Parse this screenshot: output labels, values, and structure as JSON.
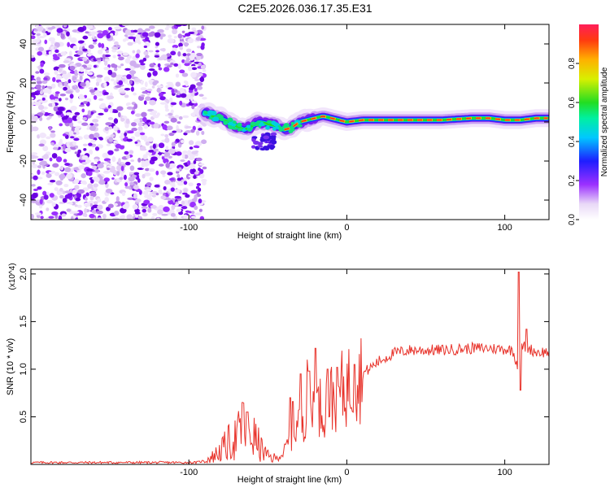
{
  "title": "C2E5.2026.036.17.35.E31",
  "chart_data": [
    {
      "type": "heatmap",
      "name": "spectrogram",
      "xlabel": "Height of straight line (km)",
      "ylabel": "Frequency (Hz)",
      "xlim": [
        -200,
        128
      ],
      "ylim": [
        -50,
        50
      ],
      "xticks": [
        -100,
        0,
        100
      ],
      "yticks": [
        -40,
        -20,
        0,
        20,
        40
      ],
      "colorbar": {
        "label": "Normalized spectral amplitude",
        "range": [
          0,
          1
        ],
        "ticks": [
          0.0,
          0.2,
          0.4,
          0.6,
          0.8
        ],
        "tick_labels": [
          "0.0",
          "0.2",
          "0.4",
          "0.6",
          "0.8"
        ]
      },
      "noise_region_x": [
        -200,
        -90
      ],
      "signal_track": [
        {
          "x": -90,
          "y": 5
        },
        {
          "x": -85,
          "y": 3
        },
        {
          "x": -80,
          "y": 2
        },
        {
          "x": -75,
          "y": 0
        },
        {
          "x": -70,
          "y": -2
        },
        {
          "x": -65,
          "y": -4
        },
        {
          "x": -60,
          "y": -2
        },
        {
          "x": -55,
          "y": 0
        },
        {
          "x": -50,
          "y": -1
        },
        {
          "x": -45,
          "y": -2
        },
        {
          "x": -40,
          "y": -4
        },
        {
          "x": -35,
          "y": -3
        },
        {
          "x": -30,
          "y": 0
        },
        {
          "x": -25,
          "y": 1
        },
        {
          "x": -20,
          "y": 2
        },
        {
          "x": -15,
          "y": 3
        },
        {
          "x": -10,
          "y": 2
        },
        {
          "x": -5,
          "y": 1
        },
        {
          "x": 0,
          "y": 0
        },
        {
          "x": 10,
          "y": 1
        },
        {
          "x": 20,
          "y": 1
        },
        {
          "x": 40,
          "y": 1
        },
        {
          "x": 60,
          "y": 1
        },
        {
          "x": 80,
          "y": 2
        },
        {
          "x": 90,
          "y": 2
        },
        {
          "x": 100,
          "y": 1
        },
        {
          "x": 110,
          "y": 1
        },
        {
          "x": 120,
          "y": 2
        },
        {
          "x": 128,
          "y": 2
        }
      ]
    },
    {
      "type": "line",
      "name": "snr",
      "xlabel": "Height of straight line (km)",
      "ylabel": "SNR (10 * v/v)",
      "scale_label": "(x10^4)",
      "xlim": [
        -200,
        128
      ],
      "ylim": [
        0,
        2.05
      ],
      "xticks": [
        -100,
        0,
        100
      ],
      "yticks": [
        0.5,
        1.0,
        1.5,
        2.0
      ],
      "ytick_labels": [
        "0.5",
        "1.0",
        "1.5",
        "2.0"
      ],
      "color": "#e8332b",
      "envelope": [
        {
          "x": -200,
          "y": 0.02
        },
        {
          "x": -95,
          "y": 0.02
        },
        {
          "x": -90,
          "y": 0.04
        },
        {
          "x": -85,
          "y": 0.08
        },
        {
          "x": -80,
          "y": 0.14
        },
        {
          "x": -75,
          "y": 0.22
        },
        {
          "x": -70,
          "y": 0.28
        },
        {
          "x": -65,
          "y": 0.38
        },
        {
          "x": -60,
          "y": 0.32
        },
        {
          "x": -55,
          "y": 0.18
        },
        {
          "x": -50,
          "y": 0.08
        },
        {
          "x": -45,
          "y": 0.06
        },
        {
          "x": -40,
          "y": 0.12
        },
        {
          "x": -35,
          "y": 0.3
        },
        {
          "x": -30,
          "y": 0.45
        },
        {
          "x": -25,
          "y": 0.58
        },
        {
          "x": -20,
          "y": 0.62
        },
        {
          "x": -15,
          "y": 0.6
        },
        {
          "x": -10,
          "y": 0.7
        },
        {
          "x": -5,
          "y": 0.75
        },
        {
          "x": 0,
          "y": 0.82
        },
        {
          "x": 10,
          "y": 0.95
        },
        {
          "x": 20,
          "y": 1.08
        },
        {
          "x": 30,
          "y": 1.17
        },
        {
          "x": 40,
          "y": 1.2
        },
        {
          "x": 50,
          "y": 1.2
        },
        {
          "x": 60,
          "y": 1.2
        },
        {
          "x": 70,
          "y": 1.21
        },
        {
          "x": 80,
          "y": 1.22
        },
        {
          "x": 90,
          "y": 1.22
        },
        {
          "x": 100,
          "y": 1.21
        },
        {
          "x": 105,
          "y": 1.2
        },
        {
          "x": 108,
          "y": 1.05
        },
        {
          "x": 110,
          "y": 1.25
        },
        {
          "x": 115,
          "y": 1.22
        },
        {
          "x": 120,
          "y": 1.18
        },
        {
          "x": 128,
          "y": 1.18
        }
      ],
      "spikes": [
        {
          "x": -66,
          "y": 0.65
        },
        {
          "x": -63,
          "y": 0.55
        },
        {
          "x": -36,
          "y": 0.7
        },
        {
          "x": -34,
          "y": 0.66
        },
        {
          "x": -29,
          "y": 0.95
        },
        {
          "x": -25,
          "y": 1.1
        },
        {
          "x": -24,
          "y": 0.98
        },
        {
          "x": -20,
          "y": 1.22
        },
        {
          "x": -12,
          "y": 1.0
        },
        {
          "x": -6,
          "y": 1.02
        },
        {
          "x": 5,
          "y": 1.05
        },
        {
          "x": 109,
          "y": 2.02
        },
        {
          "x": 110,
          "y": 0.78
        },
        {
          "x": 114,
          "y": 1.42
        }
      ]
    }
  ]
}
